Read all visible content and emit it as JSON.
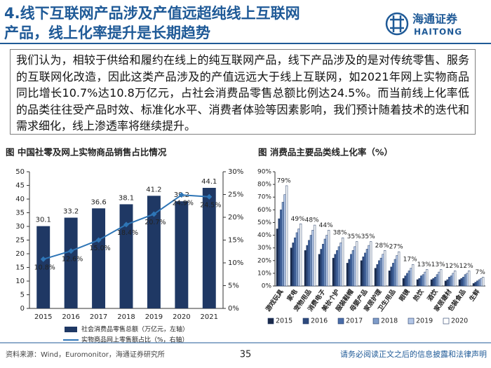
{
  "header": {
    "title": [
      "4.线下互联网产品涉及产值远超纯线上互联网",
      "产品，线上化率提升是长期趋势"
    ],
    "logo": {
      "name": "海通证券",
      "en": "HAITONG"
    }
  },
  "body": {
    "text": "我们认为，相较于供给和履约在线上的纯互联网产品，线下产品涉及的是对传统零售、服务的互联网化改造，因此这类产品涉及的产值远远大于线上互联网，如2021年网上实物商品同比增长10.7%达10.8万亿元，占社会消费品零售总额比例达24.5%。而当前线上化率低的品类往往受产品时效、标准化水平、消费者体验等因素影响，我们预计随着技术的迭代和需求细化，线上渗透率将继续提升。"
  },
  "chart_data": [
    {
      "type": "bar_line",
      "title": "图 中国社零及网上实物商品销售占比情况",
      "categories": [
        "2015",
        "2016",
        "2017",
        "2018",
        "2019",
        "2020",
        "2021"
      ],
      "series": [
        {
          "name": "社会消费品零售总额（万亿元，左轴）",
          "type": "bar",
          "color": "#1f3864",
          "values": [
            30.1,
            33.2,
            36.6,
            38.1,
            41.2,
            39.2,
            44.1
          ]
        },
        {
          "name": "实物商品网上零售额占比（%，右轴）",
          "type": "line",
          "axis": "y2",
          "color": "#2e75b6",
          "values": [
            10.8,
            12.6,
            15.0,
            18.4,
            20.7,
            24.9,
            24.5
          ],
          "value_labels": [
            "10.8%",
            "12.6%",
            "15.0%",
            "18.4%",
            "20.7%",
            "24.9%",
            "24.5%"
          ]
        }
      ],
      "ylim": [
        0,
        50
      ],
      "yticks": [
        0,
        5,
        10,
        15,
        20,
        25,
        30,
        35,
        40,
        45,
        50
      ],
      "y2lim": [
        0,
        30
      ],
      "y2ticks": [
        {
          "value": 0,
          "label": "0%"
        },
        {
          "value": 5,
          "label": "5%"
        },
        {
          "value": 10,
          "label": "10%"
        },
        {
          "value": 15,
          "label": "15%"
        },
        {
          "value": 20,
          "label": "20%"
        },
        {
          "value": 25,
          "label": "25%"
        },
        {
          "value": 30,
          "label": "30%"
        }
      ]
    },
    {
      "type": "bar",
      "title": "图 消费品主要品类线上化率（%）",
      "categories": [
        "游戏玩具",
        "家电",
        "宠物用品",
        "消费电子",
        "美妆个护",
        "服装鞋帽",
        "母婴产品",
        "家居护理",
        "卫生用品",
        "眼镜",
        "热饮",
        "酒饮",
        "家居建材",
        "包装食品",
        "生鲜"
      ],
      "series": [
        {
          "name": "2015",
          "color": "#1b2a4a",
          "values": [
            45,
            30,
            28,
            25,
            22,
            18,
            20,
            14,
            12,
            6,
            5,
            5,
            4,
            5,
            2
          ]
        },
        {
          "name": "2016",
          "color": "#2e4a7d",
          "values": [
            53,
            34,
            32,
            29,
            25,
            21,
            23,
            17,
            15,
            8,
            6,
            6,
            5,
            6,
            3
          ]
        },
        {
          "name": "2017",
          "color": "#4a6da8",
          "values": [
            60,
            38,
            36,
            33,
            28,
            25,
            26,
            20,
            18,
            10,
            8,
            7,
            7,
            7,
            4
          ]
        },
        {
          "name": "2018",
          "color": "#7f9cc9",
          "values": [
            66,
            42,
            40,
            37,
            31,
            28,
            29,
            22,
            21,
            12,
            9,
            9,
            8,
            9,
            5
          ]
        },
        {
          "name": "2019",
          "color": "#b4c7e7",
          "values": [
            72,
            45,
            44,
            40,
            34,
            31,
            32,
            25,
            24,
            14,
            11,
            11,
            10,
            10,
            6
          ]
        },
        {
          "name": "2020",
          "color": "#ffffff",
          "values": [
            79,
            49,
            48,
            44,
            38,
            35,
            35,
            28,
            27,
            17,
            13,
            13,
            12,
            12,
            7
          ],
          "value_labels": [
            "79%",
            "49%",
            "48%",
            "44%",
            "38%",
            "35%",
            "35%",
            "28%",
            "27%",
            "17%",
            "13%",
            "13%",
            "12%",
            "12%",
            "7%"
          ]
        }
      ],
      "ylim": [
        0,
        90
      ],
      "yticks": [
        {
          "value": 0,
          "label": "0%"
        },
        {
          "value": 10,
          "label": "10%"
        },
        {
          "value": 20,
          "label": "20%"
        },
        {
          "value": 30,
          "label": "30%"
        },
        {
          "value": 40,
          "label": "40%"
        },
        {
          "value": 50,
          "label": "50%"
        },
        {
          "value": 60,
          "label": "60%"
        },
        {
          "value": 70,
          "label": "70%"
        },
        {
          "value": 80,
          "label": "80%"
        },
        {
          "value": 90,
          "label": "90%"
        }
      ]
    }
  ],
  "footer": {
    "source": "资料来源：Wind，Euromonitor，海通证券研究所",
    "page": "35",
    "disclaimer": "请务必阅读正文之后的信息披露和法律声明"
  }
}
